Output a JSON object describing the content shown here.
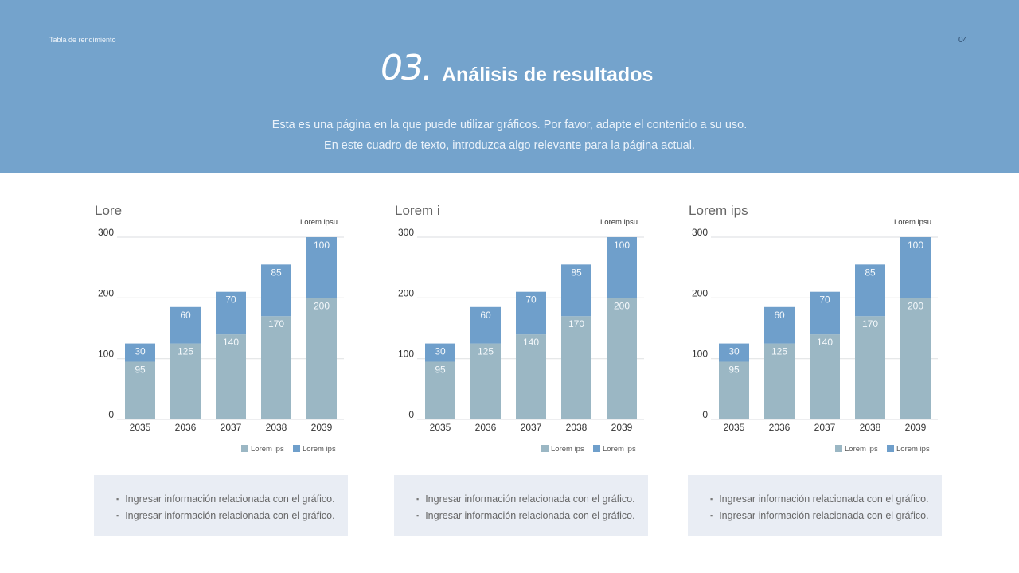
{
  "header": {
    "breadcrumb": "Tabla de rendimiento",
    "page_number": "04",
    "section_number": "03.",
    "title": "Análisis de resultados",
    "subtitle_lines": [
      "Esta es una página en la que puede utilizar gráficos. Por favor, adapte el contenido a su uso.",
      "En este cuadro de texto, introduzca algo relevante para la página actual."
    ]
  },
  "colors": {
    "header": "#74a3cc",
    "series_bottom": "#9bb7c4",
    "series_top": "#6f9fcb",
    "info_box": "#e9edf4"
  },
  "chart_data": [
    {
      "type": "bar",
      "stacked": true,
      "title": "Lore",
      "corner_label": "Lorem ipsu",
      "categories": [
        "2035",
        "2036",
        "2037",
        "2038",
        "2039"
      ],
      "ylim": [
        0,
        300
      ],
      "yticks": [
        0,
        100,
        200,
        300
      ],
      "grid": true,
      "legend": "bottom-right",
      "series": [
        {
          "name": "Lorem ips",
          "color": "#9bb7c4",
          "values": [
            95,
            125,
            140,
            170,
            200
          ]
        },
        {
          "name": "Lorem ips",
          "color": "#6f9fcb",
          "values": [
            30,
            60,
            70,
            85,
            100
          ]
        }
      ]
    },
    {
      "type": "bar",
      "stacked": true,
      "title": "Lorem i",
      "corner_label": "Lorem ipsu",
      "categories": [
        "2035",
        "2036",
        "2037",
        "2038",
        "2039"
      ],
      "ylim": [
        0,
        300
      ],
      "yticks": [
        0,
        100,
        200,
        300
      ],
      "grid": true,
      "legend": "bottom-right",
      "series": [
        {
          "name": "Lorem ips",
          "color": "#9bb7c4",
          "values": [
            95,
            125,
            140,
            170,
            200
          ]
        },
        {
          "name": "Lorem ips",
          "color": "#6f9fcb",
          "values": [
            30,
            60,
            70,
            85,
            100
          ]
        }
      ]
    },
    {
      "type": "bar",
      "stacked": true,
      "title": "Lorem ips",
      "corner_label": "Lorem ipsu",
      "categories": [
        "2035",
        "2036",
        "2037",
        "2038",
        "2039"
      ],
      "ylim": [
        0,
        300
      ],
      "yticks": [
        0,
        100,
        200,
        300
      ],
      "grid": true,
      "legend": "bottom-right",
      "series": [
        {
          "name": "Lorem ips",
          "color": "#9bb7c4",
          "values": [
            95,
            125,
            140,
            170,
            200
          ]
        },
        {
          "name": "Lorem ips",
          "color": "#6f9fcb",
          "values": [
            30,
            60,
            70,
            85,
            100
          ]
        }
      ]
    }
  ],
  "info_boxes": [
    {
      "items": [
        "Ingresar información relacionada con el gráfico.",
        "Ingresar información relacionada con el gráfico."
      ]
    },
    {
      "items": [
        "Ingresar información relacionada con el gráfico.",
        "Ingresar información relacionada con el gráfico."
      ]
    },
    {
      "items": [
        "Ingresar información relacionada con el gráfico.",
        "Ingresar información relacionada con el gráfico."
      ]
    }
  ]
}
